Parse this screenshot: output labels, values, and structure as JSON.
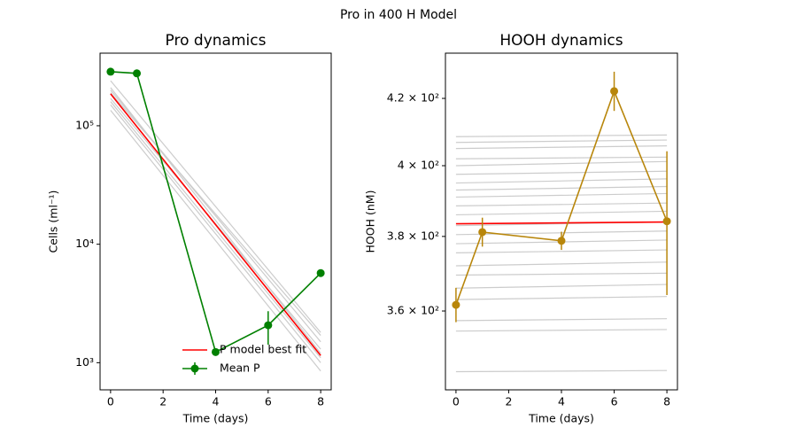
{
  "suptitle": "Pro in 400 H Model",
  "chart_data": [
    {
      "type": "line",
      "title": "Pro dynamics",
      "xlabel": "Time (days)",
      "ylabel": "Cells (ml⁻¹)",
      "yscale": "log",
      "grid": false,
      "legend": "lower right",
      "xlim": [
        -0.4,
        8.4
      ],
      "xticks": [
        0,
        2,
        4,
        6,
        8
      ],
      "ylim": [
        590,
        410000
      ],
      "yticks": [
        {
          "value": 1000,
          "label": "10³"
        },
        {
          "value": 10000,
          "label": "10⁴"
        },
        {
          "value": 100000,
          "label": "10⁵"
        }
      ],
      "runs_x": [
        0,
        8
      ],
      "runs_color": "#cccccc",
      "model_runs": [
        [
          240000,
          1800
        ],
        [
          210000,
          1200
        ],
        [
          200000,
          1500
        ],
        [
          190000,
          1700
        ],
        [
          170000,
          1300
        ],
        [
          160000,
          1100
        ],
        [
          150000,
          1000
        ],
        [
          135000,
          850
        ]
      ],
      "series": [
        {
          "name": "P model best fit",
          "color": "#ff0000",
          "x": [
            0,
            2,
            4,
            6,
            8
          ],
          "values": [
            186000,
            52100,
            14600,
            4100,
            1150
          ]
        },
        {
          "name": "Mean P",
          "color": "#008000",
          "marker": true,
          "x": [
            0,
            1,
            4,
            6,
            8
          ],
          "values": [
            286000,
            277000,
            1230,
            2070,
            5710
          ],
          "errors": [
            8000,
            8000,
            60,
            650,
            200
          ]
        }
      ]
    },
    {
      "type": "line",
      "title": "HOOH dynamics",
      "xlabel": "Time (days)",
      "ylabel": "HOOH (nM)",
      "yscale": "log",
      "grid": false,
      "xlim": [
        -0.4,
        8.4
      ],
      "xticks": [
        0,
        2,
        4,
        6,
        8
      ],
      "ylim": [
        340,
        434
      ],
      "yticks": [
        {
          "value": 360,
          "label": "3.6 × 10²"
        },
        {
          "value": 380,
          "label": "3.8 × 10²"
        },
        {
          "value": 400,
          "label": "4 × 10²"
        },
        {
          "value": 420,
          "label": "4.2 × 10²"
        }
      ],
      "runs_x": [
        0,
        8
      ],
      "runs_color": "#cccccc",
      "model_runs": [
        [
          408.5,
          409.0
        ],
        [
          406.8,
          407.5
        ],
        [
          405.0,
          405.8
        ],
        [
          402.0,
          402.5
        ],
        [
          400.0,
          401.2
        ],
        [
          397.5,
          398.4
        ],
        [
          395.0,
          396.2
        ],
        [
          393.0,
          394.0
        ],
        [
          391.0,
          392.0
        ],
        [
          388.5,
          389.3
        ],
        [
          386.0,
          387.0
        ],
        [
          383.0,
          384.0
        ],
        [
          380.5,
          381.5
        ],
        [
          378.0,
          379.0
        ],
        [
          375.5,
          376.3
        ],
        [
          372.0,
          373.0
        ],
        [
          369.5,
          370.0
        ],
        [
          366.0,
          367.0
        ],
        [
          363.0,
          363.8
        ],
        [
          357.5,
          358.0
        ],
        [
          354.8,
          355.2
        ],
        [
          344.5,
          344.8
        ]
      ],
      "series": [
        {
          "color": "#ff0000",
          "x": [
            0,
            8
          ],
          "values": [
            383.5,
            384.0
          ]
        },
        {
          "color": "#b8860b",
          "marker": true,
          "x": [
            0,
            1,
            4,
            6,
            8
          ],
          "values": [
            361.6,
            381.2,
            378.8,
            422.2,
            384.2
          ],
          "errors": [
            4.5,
            4,
            2.5,
            6,
            20
          ]
        }
      ]
    }
  ]
}
